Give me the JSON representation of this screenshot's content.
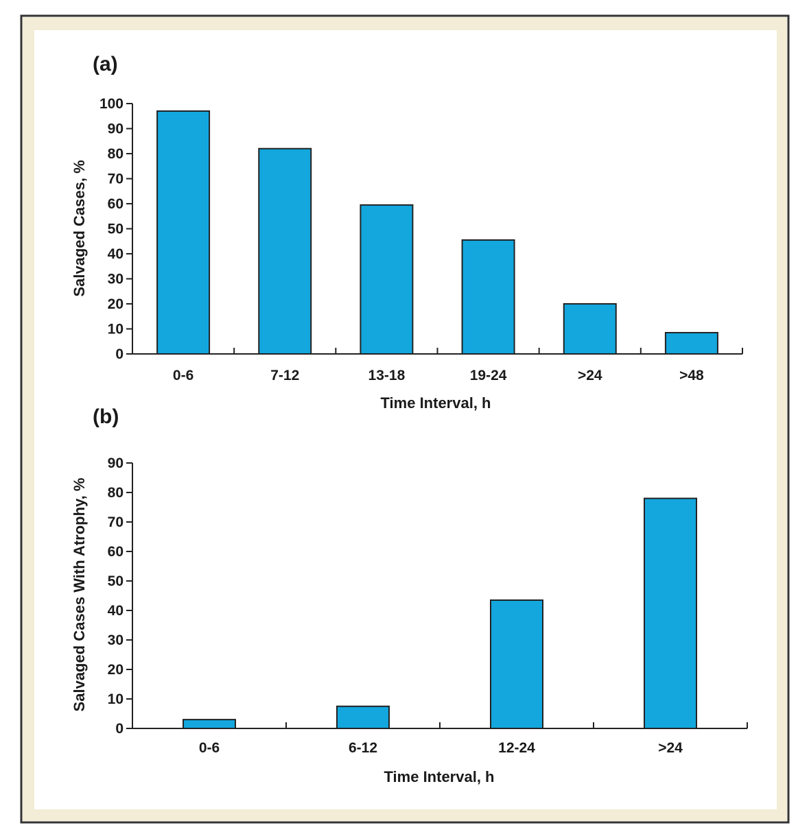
{
  "figure": {
    "frame_color": "#f3ecd6",
    "panel_color": "#ffffff",
    "bar_color": "#13a7de",
    "bar_edge_color": "#222222"
  },
  "chart_data": [
    {
      "id": "a",
      "panel_label": "(a)",
      "type": "bar",
      "categories": [
        "0-6",
        "7-12",
        "13-18",
        "19-24",
        ">24",
        ">48"
      ],
      "values": [
        97,
        82,
        59.5,
        45.5,
        20,
        8.5
      ],
      "xlabel": "Time Interval, h",
      "ylabel": "Salvaged Cases, %",
      "ylim": [
        0,
        100
      ],
      "yticks": [
        0,
        10,
        20,
        30,
        40,
        50,
        60,
        70,
        80,
        90,
        100
      ],
      "grid": false
    },
    {
      "id": "b",
      "panel_label": "(b)",
      "type": "bar",
      "categories": [
        "0-6",
        "6-12",
        "12-24",
        ">24"
      ],
      "values": [
        3,
        7.5,
        43.5,
        78
      ],
      "xlabel": "Time Interval, h",
      "ylabel": "Salvaged Cases With Atrophy, %",
      "ylim": [
        0,
        90
      ],
      "yticks": [
        0,
        10,
        20,
        30,
        40,
        50,
        60,
        70,
        80,
        90
      ],
      "grid": false
    }
  ]
}
